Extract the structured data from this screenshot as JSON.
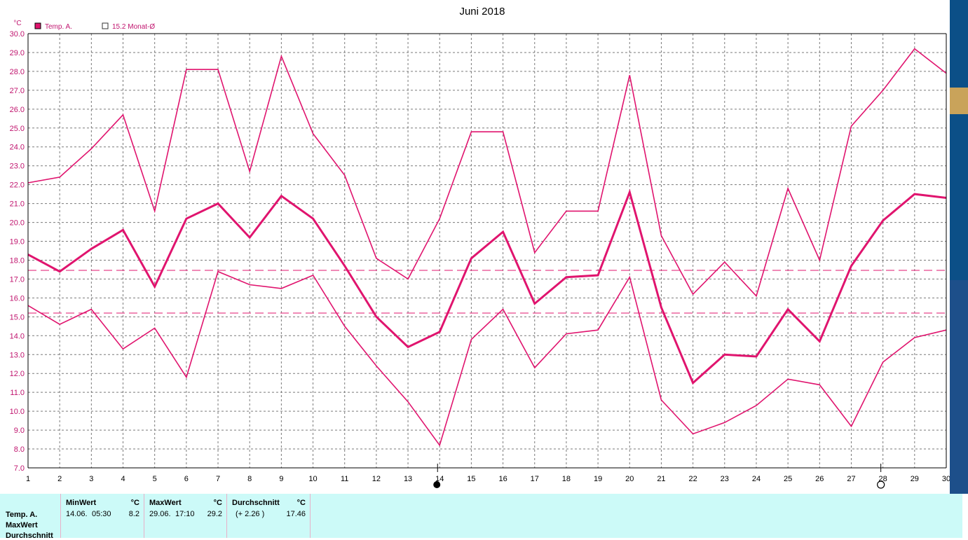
{
  "chart_data": {
    "type": "line",
    "title": "Juni 2018",
    "ylabel": "°C",
    "x": [
      1,
      2,
      3,
      4,
      5,
      6,
      7,
      8,
      9,
      10,
      11,
      12,
      13,
      14,
      15,
      16,
      17,
      18,
      19,
      20,
      21,
      22,
      23,
      24,
      25,
      26,
      27,
      28,
      29,
      30
    ],
    "ylim": [
      7.0,
      30.0
    ],
    "yticks": [
      "7.0",
      "8.0",
      "9.0",
      "10.0",
      "11.0",
      "12.0",
      "13.0",
      "14.0",
      "15.0",
      "16.0",
      "17.0",
      "18.0",
      "19.0",
      "20.0",
      "21.0",
      "22.0",
      "23.0",
      "24.0",
      "25.0",
      "26.0",
      "27.0",
      "28.0",
      "29.0",
      "30.0"
    ],
    "grid": true,
    "legend": [
      {
        "label": "Temp. A.",
        "filled": true
      },
      {
        "label": "15.2 Monat-Ø",
        "filled": false
      }
    ],
    "series": [
      {
        "name": "Temp. A.",
        "role": "avg",
        "color": "#e0146e",
        "values": [
          18.3,
          17.4,
          18.6,
          19.6,
          16.6,
          20.2,
          21.0,
          19.2,
          21.4,
          20.2,
          17.7,
          15.0,
          13.4,
          14.2,
          18.1,
          19.5,
          15.7,
          17.1,
          17.2,
          21.6,
          15.5,
          11.5,
          13.0,
          12.9,
          15.4,
          13.7,
          17.7,
          20.1,
          21.5,
          21.3
        ]
      },
      {
        "role": "max",
        "color": "#e0146e",
        "values": [
          22.1,
          22.4,
          23.9,
          25.7,
          20.6,
          28.1,
          28.1,
          22.7,
          28.8,
          24.7,
          22.5,
          18.1,
          17.0,
          20.2,
          24.8,
          24.8,
          18.4,
          20.6,
          20.6,
          27.8,
          19.3,
          16.2,
          17.9,
          16.1,
          21.8,
          18.0,
          25.1,
          27.0,
          29.2,
          27.9
        ]
      },
      {
        "role": "min",
        "color": "#e0146e",
        "values": [
          15.6,
          14.6,
          15.4,
          13.3,
          14.4,
          11.8,
          17.4,
          16.7,
          16.5,
          17.2,
          14.5,
          12.4,
          10.5,
          8.2,
          13.8,
          15.4,
          12.3,
          14.1,
          14.3,
          17.1,
          10.6,
          8.8,
          9.4,
          10.3,
          11.7,
          11.4,
          9.2,
          12.6,
          13.9,
          14.3
        ]
      }
    ],
    "reference_lines": [
      {
        "value": 17.46,
        "color": "#e0146e"
      },
      {
        "value": 15.2,
        "color": "#e0146e"
      }
    ],
    "moon_phases": [
      {
        "day": 14,
        "phase": "new-moon"
      },
      {
        "day": 28,
        "phase": "full-moon"
      }
    ]
  },
  "stats": {
    "row_labels": [
      "Temp. A.",
      "MaxWert",
      "Durchschnitt"
    ],
    "min": {
      "header": "MinWert",
      "unit": "°C",
      "date": "14.06.",
      "time": "05:30",
      "value": "8.2"
    },
    "max": {
      "header": "MaxWert",
      "unit": "°C",
      "date": "29.06.",
      "time": "17:10",
      "value": "29.2"
    },
    "avg": {
      "header": "Durchschnitt",
      "unit": "°C",
      "delta": "(+ 2.26 )",
      "value": "17.46"
    }
  },
  "colors": {
    "series": "#e0146e",
    "grid": "#808080",
    "panel_bg": "#ccfaf8",
    "title": "#000000"
  }
}
